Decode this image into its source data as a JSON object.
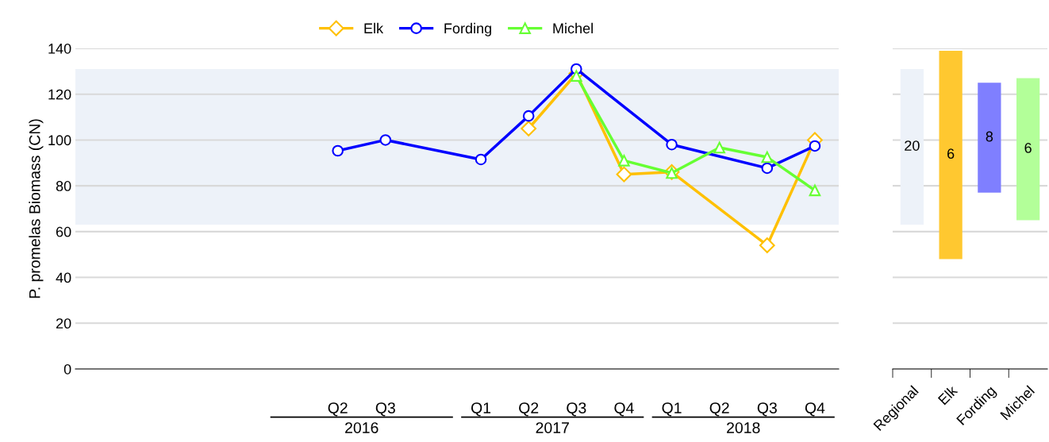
{
  "chart_data": [
    {
      "type": "line",
      "ylabel": "P. promelas Biomass (CN)",
      "legend": "top",
      "grid": "y",
      "line_style": "solid",
      "ylim": [
        0,
        140
      ],
      "yticks": [
        0,
        20,
        40,
        60,
        80,
        100,
        120,
        140
      ],
      "categories": [
        null,
        null,
        null,
        null,
        null,
        "Q2",
        "Q3",
        null,
        "Q1",
        "Q2",
        "Q3",
        "Q4",
        "Q1",
        "Q2",
        "Q3",
        "Q4"
      ],
      "annotations": [
        "2016",
        "2017",
        "2018"
      ],
      "bands": [
        {
          "axis": "y",
          "from": 63,
          "to": 131,
          "color": "#edf2f9"
        }
      ],
      "series": [
        {
          "name": "Elk",
          "color": "#ffc000",
          "marker": "diamond",
          "values": [
            null,
            null,
            null,
            null,
            null,
            null,
            null,
            null,
            null,
            105,
            129,
            85,
            86,
            null,
            54,
            100
          ]
        },
        {
          "name": "Fording",
          "color": "#0000ff",
          "marker": "circle",
          "values": [
            null,
            null,
            null,
            null,
            null,
            95.3,
            100,
            null,
            91.5,
            110.5,
            131,
            null,
            98,
            null,
            87.7,
            97.4
          ]
        },
        {
          "name": "Michel",
          "color": "#66ff33",
          "marker": "triangle",
          "values": [
            null,
            null,
            null,
            null,
            null,
            null,
            null,
            null,
            null,
            null,
            128,
            91,
            85.6,
            96.7,
            92.5,
            78
          ]
        }
      ]
    },
    {
      "type": "bar",
      "grid": "y",
      "tick_labels": "x",
      "ylim": [
        0,
        140
      ],
      "yticks": [
        0,
        20,
        40,
        60,
        80,
        100,
        120,
        140
      ],
      "categories": [
        "Regional",
        "Elk",
        "Fording",
        "Michel"
      ],
      "base": [
        63,
        48,
        77,
        65
      ],
      "values": [
        68,
        91,
        48,
        62
      ],
      "colors": [
        "#edf2f9",
        "#ffc830",
        "#7f7fff",
        "#b3ff99"
      ],
      "annotations": [
        "20",
        "6",
        "8",
        "6"
      ]
    }
  ]
}
